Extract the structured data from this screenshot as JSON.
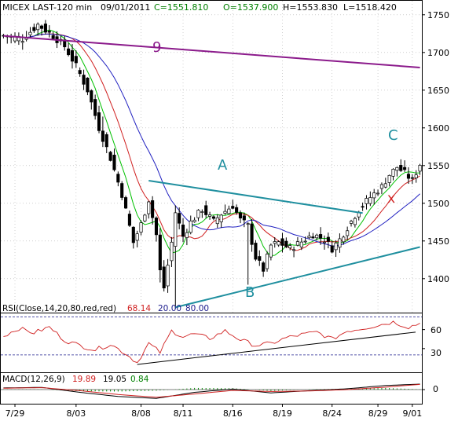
{
  "header": {
    "symbol": "MICEX LAST-120 min",
    "date": "09/01/2011",
    "close": "C=1551.810",
    "open": "O=1537.900",
    "high": "H=1553.830",
    "low": "L=1518.420"
  },
  "annotations": {
    "label_9": "9",
    "label_a": "A",
    "label_b": "B",
    "label_c": "C",
    "label_x": "x"
  },
  "rsi": {
    "title": "RSI(Close,14,20,80,red,red)",
    "value": "68.14",
    "lower": "20.00",
    "upper": "80.00",
    "ticks": [
      "60",
      "30"
    ]
  },
  "macd": {
    "title": "MACD(12,26,9)",
    "macd_value": "19.89",
    "signal_value": "19.05",
    "hist_value": "0.84",
    "ticks": [
      "0"
    ]
  },
  "chart_data": {
    "type": "candlestick",
    "x_labels": [
      "7/29",
      "8/03",
      "8/08",
      "8/11",
      "8/16",
      "8/19",
      "8/24",
      "8/29",
      "9/01"
    ],
    "y_ticks": [
      "1750",
      "1700",
      "1650",
      "1600",
      "1550",
      "1500",
      "1450",
      "1400"
    ],
    "ylim": [
      1355,
      1755
    ],
    "bars_count": 110,
    "price_anchors": [
      [
        0,
        1722
      ],
      [
        5,
        1718
      ],
      [
        9,
        1737
      ],
      [
        13,
        1722
      ],
      [
        16,
        1708
      ],
      [
        19,
        1682
      ],
      [
        22,
        1650
      ],
      [
        25,
        1600
      ],
      [
        28,
        1560
      ],
      [
        31,
        1512
      ],
      [
        34,
        1448
      ],
      [
        36,
        1472
      ],
      [
        38,
        1505
      ],
      [
        40,
        1458
      ],
      [
        41,
        1410
      ],
      [
        42,
        1388
      ],
      [
        44,
        1448
      ],
      [
        45,
        1488
      ],
      [
        47,
        1456
      ],
      [
        49,
        1475
      ],
      [
        52,
        1492
      ],
      [
        55,
        1476
      ],
      [
        57,
        1486
      ],
      [
        60,
        1497
      ],
      [
        62,
        1478
      ],
      [
        64,
        1470
      ],
      [
        66,
        1428
      ],
      [
        68,
        1412
      ],
      [
        70,
        1444
      ],
      [
        72,
        1448
      ],
      [
        75,
        1440
      ],
      [
        78,
        1449
      ],
      [
        81,
        1459
      ],
      [
        84,
        1452
      ],
      [
        86,
        1440
      ],
      [
        88,
        1452
      ],
      [
        90,
        1468
      ],
      [
        93,
        1492
      ],
      [
        96,
        1508
      ],
      [
        99,
        1522
      ],
      [
        101,
        1538
      ],
      [
        103,
        1548
      ],
      [
        105,
        1540
      ],
      [
        107,
        1530
      ],
      [
        109,
        1552
      ]
    ],
    "moving_averages": [
      {
        "color": "#00c000",
        "period": 6
      },
      {
        "color": "#d02020",
        "period": 12
      },
      {
        "color": "#2020c0",
        "period": 22
      }
    ],
    "trendlines": [
      {
        "label": "9",
        "from": [
          0,
          1722
        ],
        "to": [
          109,
          1680
        ],
        "color": "#8b1a8b"
      },
      {
        "label": "A",
        "from": [
          38,
          1530
        ],
        "to": [
          94,
          1487
        ],
        "color": "#1f8f9f"
      },
      {
        "label": "B",
        "from": [
          45,
          1362
        ],
        "to": [
          109,
          1442
        ],
        "color": "#1f8f9f"
      }
    ],
    "rsi_series_anchors": [
      [
        0,
        50
      ],
      [
        4,
        62
      ],
      [
        8,
        55
      ],
      [
        12,
        64
      ],
      [
        16,
        43
      ],
      [
        20,
        35
      ],
      [
        24,
        28
      ],
      [
        28,
        37
      ],
      [
        32,
        22
      ],
      [
        35,
        8
      ],
      [
        38,
        38
      ],
      [
        41,
        24
      ],
      [
        44,
        58
      ],
      [
        47,
        49
      ],
      [
        50,
        53
      ],
      [
        54,
        46
      ],
      [
        58,
        58
      ],
      [
        62,
        44
      ],
      [
        66,
        35
      ],
      [
        70,
        38
      ],
      [
        74,
        47
      ],
      [
        78,
        52
      ],
      [
        82,
        56
      ],
      [
        86,
        45
      ],
      [
        90,
        58
      ],
      [
        94,
        62
      ],
      [
        98,
        67
      ],
      [
        102,
        72
      ],
      [
        106,
        64
      ],
      [
        109,
        70
      ]
    ],
    "rsi_trendline": {
      "from": [
        35,
        5
      ],
      "to": [
        109,
        56
      ]
    },
    "macd_series_anchors": [
      [
        0,
        6
      ],
      [
        10,
        8
      ],
      [
        20,
        -10
      ],
      [
        30,
        -25
      ],
      [
        40,
        -32
      ],
      [
        50,
        -10
      ],
      [
        60,
        2
      ],
      [
        70,
        -12
      ],
      [
        80,
        -4
      ],
      [
        90,
        3
      ],
      [
        100,
        15
      ],
      [
        109,
        20
      ]
    ],
    "signal_series_anchors": [
      [
        0,
        5
      ],
      [
        10,
        7
      ],
      [
        20,
        -4
      ],
      [
        30,
        -18
      ],
      [
        40,
        -28
      ],
      [
        50,
        -16
      ],
      [
        60,
        -3
      ],
      [
        70,
        -7
      ],
      [
        80,
        -5
      ],
      [
        90,
        0
      ],
      [
        100,
        9
      ],
      [
        109,
        19
      ]
    ],
    "colors": {
      "up_candle": "#ffffff",
      "down_candle": "#000000",
      "rsi_line": "#d02020",
      "rsi_bounds": "#1a1a8b",
      "macd_line": "#000000",
      "signal_line": "#d02020",
      "grid": "#b0b0b0"
    }
  }
}
